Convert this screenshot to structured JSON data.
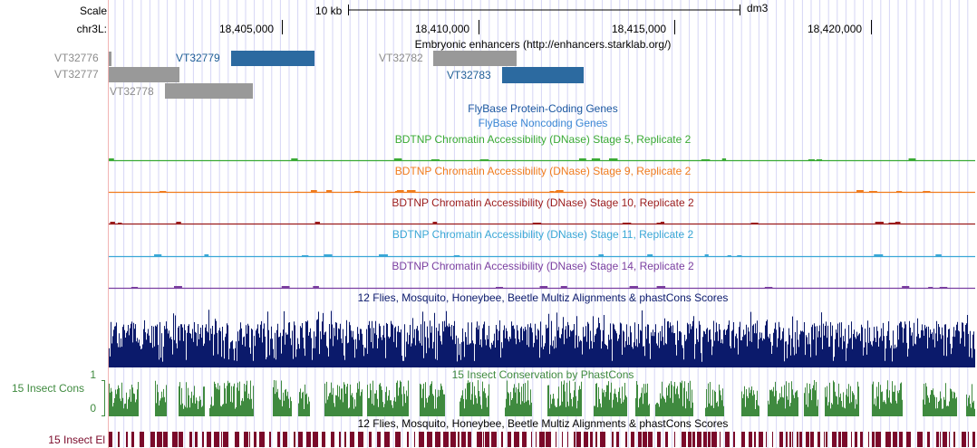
{
  "ruler": {
    "scale_label": "Scale",
    "chrom_label": "chr3L:",
    "scale_bar_label": "10 kb",
    "assembly": "dm3",
    "ticks": [
      "18,405,000",
      "18,410,000",
      "18,415,000",
      "18,420,000"
    ]
  },
  "tracks": {
    "enhancers": {
      "title": "Embryonic enhancers (http://enhancers.starklab.org/)",
      "items": [
        {
          "name": "VT32776",
          "highlighted": false
        },
        {
          "name": "VT32777",
          "highlighted": false
        },
        {
          "name": "VT32778",
          "highlighted": false
        },
        {
          "name": "VT32779",
          "highlighted": true
        },
        {
          "name": "VT32782",
          "highlighted": false
        },
        {
          "name": "VT32783",
          "highlighted": true
        }
      ]
    },
    "flybase_coding": {
      "title": "FlyBase Protein-Coding Genes",
      "color": "#1a56a0"
    },
    "flybase_noncoding": {
      "title": "FlyBase Noncoding Genes",
      "color": "#3a86d4"
    },
    "dnase": [
      {
        "title": "BDTNP Chromatin Accessibility (DNase) Stage 5, Replicate 2",
        "color": "#3aaa35"
      },
      {
        "title": "BDTNP Chromatin Accessibility (DNase) Stage 9, Replicate 2",
        "color": "#f07c1e"
      },
      {
        "title": "BDTNP Chromatin Accessibility (DNase) Stage 10, Replicate 2",
        "color": "#9b1c1c"
      },
      {
        "title": "BDTNP Chromatin Accessibility (DNase) Stage 11, Replicate 2",
        "color": "#3aa7d6"
      },
      {
        "title": "BDTNP Chromatin Accessibility (DNase) Stage 14, Replicate 2",
        "color": "#7b3fa0"
      }
    ],
    "multiz": {
      "title": "12 Flies, Mosquito, Honeybee, Beetle Multiz Alignments & phastCons Scores",
      "color": "#0b1a6b"
    },
    "phastcons": {
      "title": "15 Insect Conservation by PhastCons",
      "side_label": "15 Insect Cons",
      "y_max": "1",
      "y_min": "0",
      "color": "#3f8a3f"
    },
    "elements": {
      "title": "12 Flies, Mosquito, Honeybee, Beetle Multiz Alignments & phastCons Scores",
      "side_label": "15 Insect El",
      "color": "#7a0a2a"
    }
  }
}
